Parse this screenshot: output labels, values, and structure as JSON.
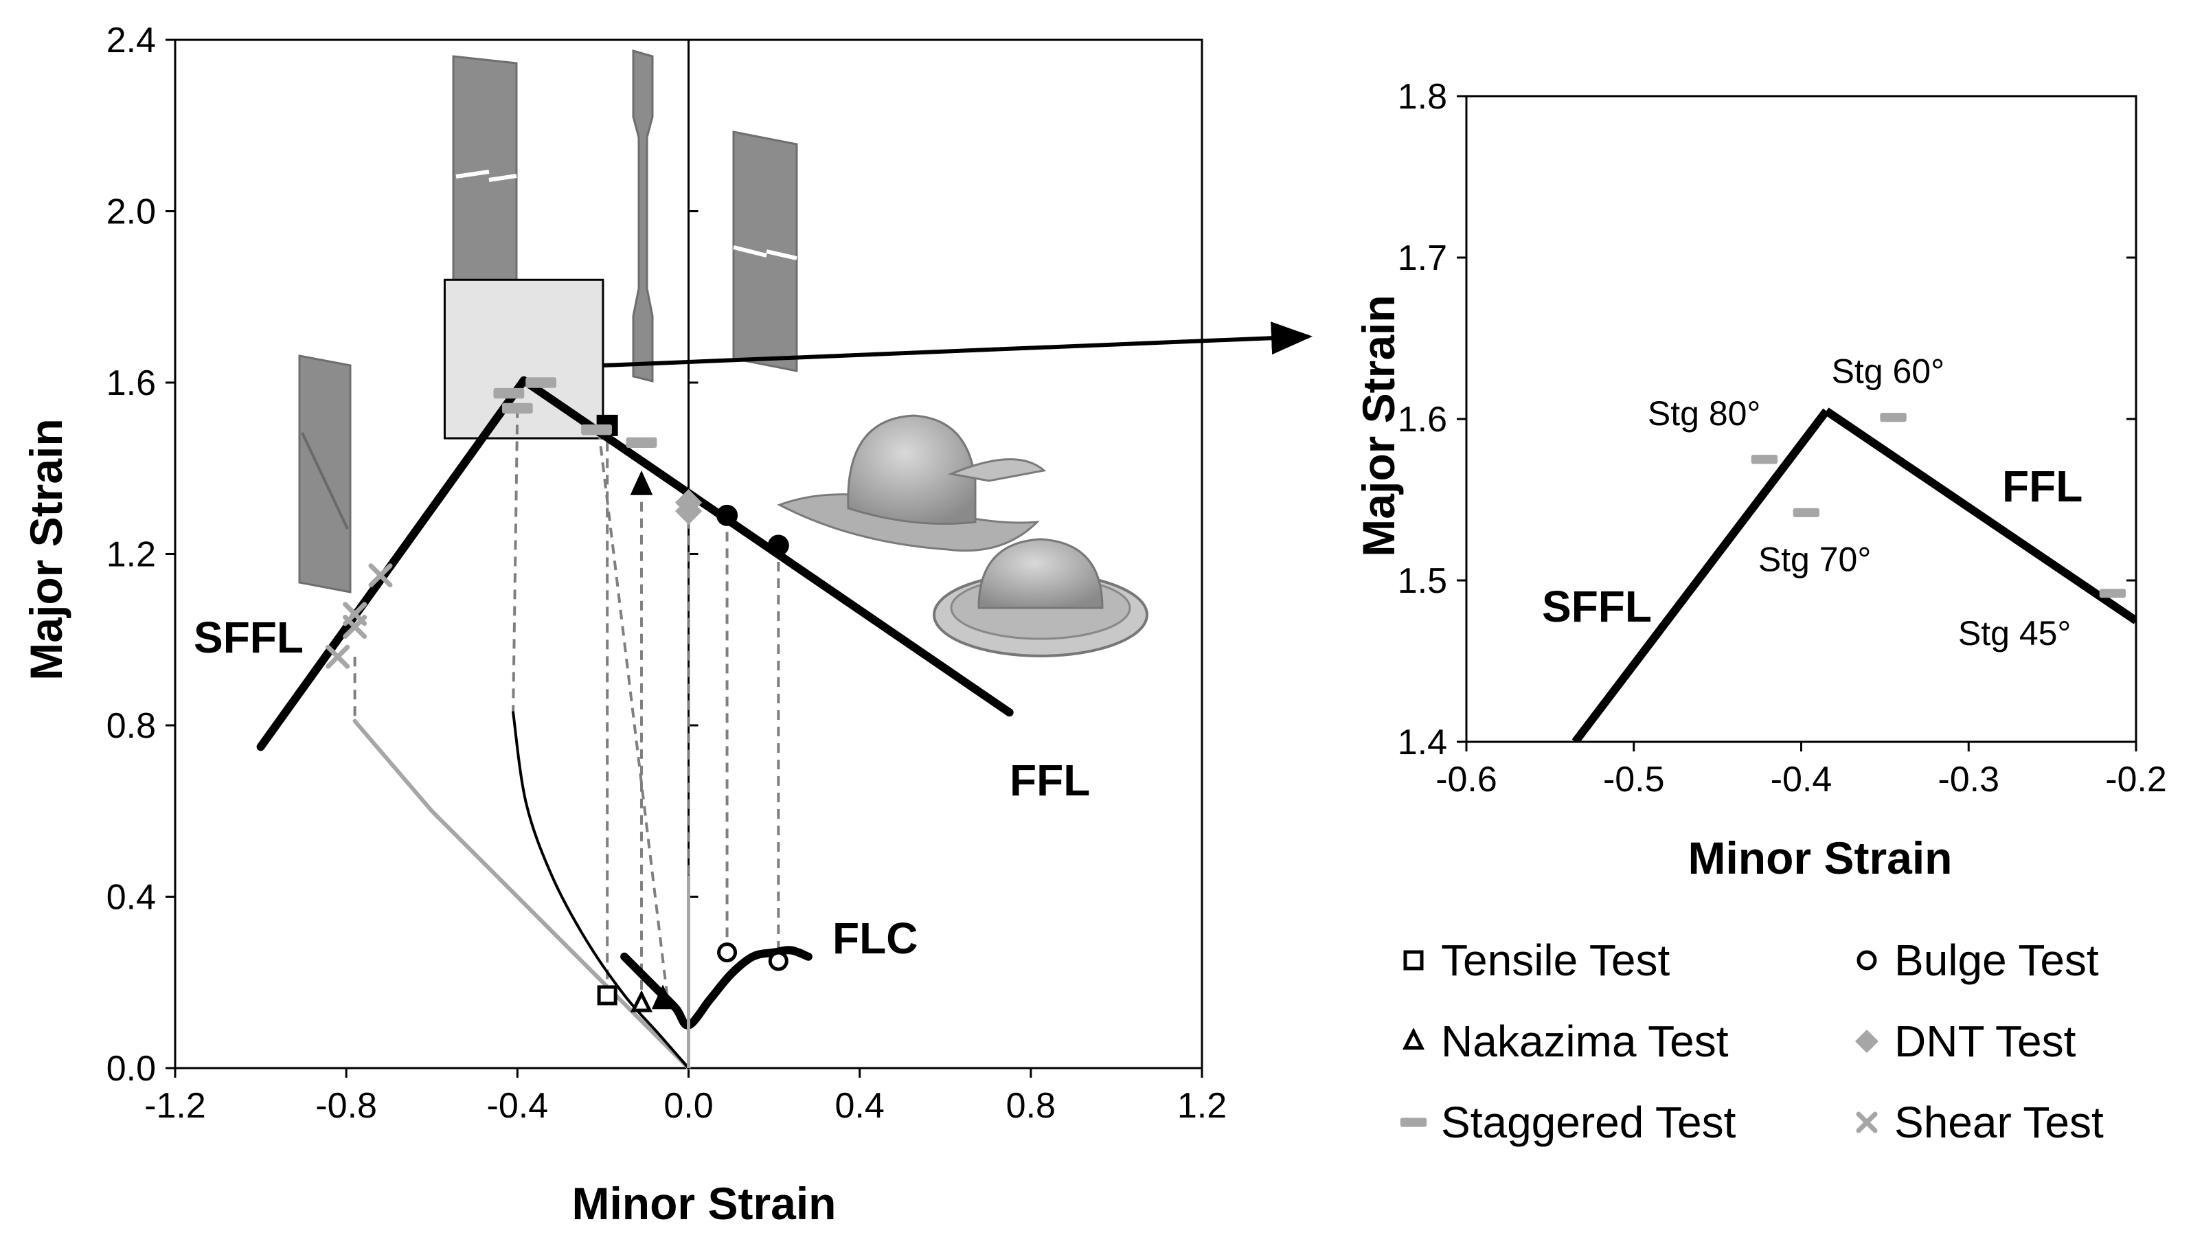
{
  "chart_data": [
    {
      "type": "line",
      "title": "",
      "xlabel": "Minor Strain",
      "ylabel": "Major Strain",
      "xlim": [
        -1.2,
        1.2
      ],
      "ylim": [
        0,
        2.4
      ],
      "xticks": [
        "-1.2",
        "-0.8",
        "-0.4",
        "0.0",
        "0.4",
        "0.8",
        "1.2"
      ],
      "yticks": [
        "0.0",
        "0.4",
        "0.8",
        "1.2",
        "1.6",
        "2.0",
        "2.4"
      ],
      "curve_labels": {
        "sffl": "SFFL",
        "ffl": "FFL",
        "flc": "FLC"
      },
      "series": [
        {
          "name": "SFFL",
          "points": [
            [
              -1.0,
              0.75
            ],
            [
              -0.385,
              1.605
            ]
          ]
        },
        {
          "name": "FFL",
          "points": [
            [
              -0.385,
              1.605
            ],
            [
              0.75,
              0.83
            ]
          ]
        },
        {
          "name": "FLC",
          "points": [
            [
              -0.15,
              0.26
            ],
            [
              -0.08,
              0.19
            ],
            [
              -0.03,
              0.14
            ],
            [
              0.0,
              0.1
            ],
            [
              0.05,
              0.16
            ],
            [
              0.1,
              0.22
            ],
            [
              0.15,
              0.26
            ],
            [
              0.2,
              0.27
            ],
            [
              0.24,
              0.275
            ],
            [
              0.28,
              0.26
            ]
          ]
        },
        {
          "name": "Shear strain path",
          "points": [
            [
              -0.78,
              0.81
            ],
            [
              -0.6,
              0.6
            ],
            [
              -0.4,
              0.4
            ],
            [
              -0.2,
              0.2
            ],
            [
              0.0,
              0.0
            ]
          ]
        },
        {
          "name": "Staggered strain path",
          "points": [
            [
              -0.41,
              0.83
            ],
            [
              -0.38,
              0.62
            ],
            [
              -0.32,
              0.45
            ],
            [
              -0.24,
              0.3
            ],
            [
              -0.15,
              0.17
            ],
            [
              -0.07,
              0.08
            ],
            [
              0.0,
              0.0
            ]
          ]
        }
      ],
      "markers": [
        {
          "test": "Tensile Test",
          "x": -0.19,
          "y": 1.5,
          "fy": 0.17
        },
        {
          "test": "Nakazima Test",
          "x": -0.11,
          "y": 1.36,
          "fy": 0.15
        },
        {
          "test": "Nakazima Test",
          "x": -0.06,
          "y": 0.16
        },
        {
          "test": "Staggered Test",
          "x": -0.42,
          "y": 1.575
        },
        {
          "test": "Staggered Test",
          "x": -0.4,
          "y": 1.54
        },
        {
          "test": "Staggered Test",
          "x": -0.345,
          "y": 1.6
        },
        {
          "test": "Staggered Test",
          "x": -0.215,
          "y": 1.49
        },
        {
          "test": "Staggered Test",
          "x": -0.11,
          "y": 1.46
        },
        {
          "test": "DNT Test",
          "x": 0.0,
          "y": 1.32
        },
        {
          "test": "DNT Test",
          "x": 0.0,
          "y": 1.3
        },
        {
          "test": "Bulge Test",
          "x": 0.09,
          "y": 1.29,
          "fy": 0.27
        },
        {
          "test": "Bulge Test",
          "x": 0.21,
          "y": 1.22,
          "fy": 0.25
        },
        {
          "test": "Shear Test",
          "x": -0.82,
          "y": 0.96
        },
        {
          "test": "Shear Test",
          "x": -0.78,
          "y": 1.03
        },
        {
          "test": "Shear Test",
          "x": -0.78,
          "y": 1.06
        },
        {
          "test": "Shear Test",
          "x": -0.72,
          "y": 1.15
        }
      ],
      "zoom_box": {
        "x": [
          -0.57,
          -0.2
        ],
        "y": [
          1.47,
          1.84
        ]
      }
    },
    {
      "type": "line",
      "title": "",
      "xlabel": "Minor Strain",
      "ylabel": "Major Strain",
      "xlim": [
        -0.6,
        -0.2
      ],
      "ylim": [
        1.4,
        1.8
      ],
      "xticks": [
        "-0.6",
        "-0.5",
        "-0.4",
        "-0.3",
        "-0.2"
      ],
      "yticks": [
        "1.4",
        "1.5",
        "1.6",
        "1.7",
        "1.8"
      ],
      "curve_labels": {
        "sffl": "SFFL",
        "ffl": "FFL"
      },
      "series": [
        {
          "name": "SFFL",
          "points": [
            [
              -0.535,
              1.4
            ],
            [
              -0.385,
              1.605
            ]
          ]
        },
        {
          "name": "FFL",
          "points": [
            [
              -0.385,
              1.605
            ],
            [
              -0.2,
              1.475
            ]
          ]
        }
      ],
      "markers": [
        {
          "test": "Staggered Test",
          "label": "Stg 80°",
          "x": -0.422,
          "y": 1.575
        },
        {
          "test": "Staggered Test",
          "label": "Stg 70°",
          "x": -0.397,
          "y": 1.542
        },
        {
          "test": "Staggered Test",
          "label": "Stg 60°",
          "x": -0.345,
          "y": 1.601
        },
        {
          "test": "Staggered Test",
          "label": "Stg 45°",
          "x": -0.214,
          "y": 1.492
        }
      ]
    }
  ],
  "legend": [
    {
      "key": "tensile",
      "label": "Tensile Test"
    },
    {
      "key": "bulge",
      "label": "Bulge Test"
    },
    {
      "key": "nakazima",
      "label": "Nakazima Test"
    },
    {
      "key": "dnt",
      "label": "DNT Test"
    },
    {
      "key": "staggered",
      "label": "Staggered Test"
    },
    {
      "key": "shear",
      "label": "Shear Test"
    }
  ],
  "colors": {
    "curve": "#000000",
    "marker_gray": "#a6a6a6",
    "dashed": "#7f7f7f",
    "specimen": "#8c8c8c",
    "zoom_fill": "#e4e4e4"
  }
}
